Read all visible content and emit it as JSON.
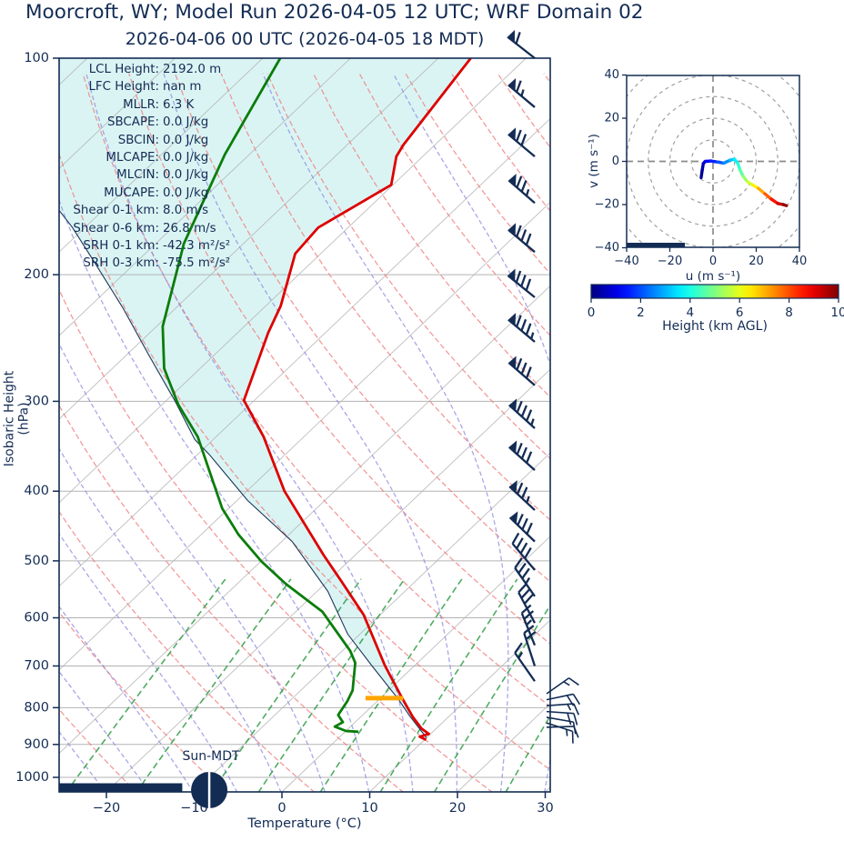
{
  "header": {
    "title": "Moorcroft, WY; Model Run 2026-04-05 12 UTC; WRF Domain 02",
    "subtitle": "2026-04-06 00 UTC  (2026-04-05 18 MDT)"
  },
  "skewt": {
    "ylabel": "Isobaric Height (hPa)",
    "xlabel": "Temperature (°C)",
    "pressure_ticks": [
      100,
      200,
      300,
      400,
      500,
      600,
      700,
      800,
      900,
      1000
    ],
    "temp_ticks": [
      -20,
      -10,
      0,
      10,
      20,
      30
    ],
    "sun_label": "Sun-MDT",
    "stats": [
      {
        "label": "LCL Height",
        "value": "2192.0 m"
      },
      {
        "label": "LFC Height",
        "value": "nan m"
      },
      {
        "label": "MLLR",
        "value": "6.3 K"
      },
      {
        "label": "SBCAPE",
        "value": "0.0 J/kg"
      },
      {
        "label": "SBCIN",
        "value": "0.0 J/kg"
      },
      {
        "label": "MLCAPE",
        "value": "0.0 J/kg"
      },
      {
        "label": "MLCIN",
        "value": "0.0 J/kg"
      },
      {
        "label": "MUCAPE",
        "value": "0.0 J/kg"
      },
      {
        "label": "Shear 0-1 km",
        "value": "8.0 m/s"
      },
      {
        "label": "Shear 0-6 km",
        "value": "26.8 m/s"
      },
      {
        "label": "SRH 0-1 km",
        "value": "-42.3 m²/s²"
      },
      {
        "label": "SRH 0-3 km",
        "value": "-75.5 m²/s²"
      }
    ]
  },
  "hodograph": {
    "xlabel": "u (m s⁻¹)",
    "ylabel": "v (m s⁻¹)",
    "ticks": [
      -40,
      -20,
      0,
      20,
      40
    ],
    "ring_radii": [
      10,
      20,
      30,
      40,
      50
    ],
    "axis_range": [
      -40,
      40
    ]
  },
  "colorbar": {
    "label": "Height (km AGL)",
    "ticks": [
      0,
      2,
      4,
      6,
      8,
      10
    ],
    "range": [
      0,
      10
    ]
  },
  "colors": {
    "navy": "#132c54",
    "temperature": "#dd0000",
    "dewpoint": "#0a7d0a",
    "parcel": "#1d3557",
    "dry_adiabat": "#f07d7d",
    "moist_adiabat": "#8b8bdf",
    "mixing_ratio": "#2f9e44",
    "isotherm": "#b3b3b3",
    "grid": "#b3b3b3",
    "hodo_ring": "#a0a0a0",
    "cape_shade": "#daf4f4",
    "lcl": "#ffa500"
  },
  "chart_data": [
    {
      "type": "line",
      "name": "skewt-log-p",
      "xlabel": "Temperature (°C)",
      "ylabel": "Isobaric Height (hPa)",
      "x_range": [
        -26,
        30
      ],
      "p_range": [
        100,
        1050
      ],
      "isotherm_step": 10,
      "dry_adiabat_theta": {
        "start": -30,
        "end": 200,
        "step": 10
      },
      "moist_adiabat_t0": {
        "start": -60,
        "end": 40,
        "step": 5
      },
      "mixing_ratios_gkg": [
        0.5,
        1,
        2,
        3,
        5,
        8,
        12,
        20,
        30
      ],
      "temperature_profile": [
        [
          100,
          -66.3
        ],
        [
          132,
          -63.6
        ],
        [
          137,
          -63.0
        ],
        [
          150,
          -60.2
        ],
        [
          172,
          -63.4
        ],
        [
          187,
          -62.9
        ],
        [
          221,
          -58.3
        ],
        [
          241,
          -56.5
        ],
        [
          299,
          -51.2
        ],
        [
          336,
          -44.6
        ],
        [
          400,
          -35.7
        ],
        [
          490,
          -23.7
        ],
        [
          534,
          -18.4
        ],
        [
          594,
          -11.9
        ],
        [
          699,
          -3.4
        ],
        [
          775,
          2.4
        ],
        [
          825,
          6.0
        ],
        [
          855,
          8.3
        ],
        [
          870,
          9.8
        ],
        [
          878,
          9.1
        ],
        [
          887,
          10.2
        ]
      ],
      "dewpoint_profile": [
        [
          100,
          -88.0
        ],
        [
          136,
          -82.8
        ],
        [
          181,
          -76.8
        ],
        [
          236,
          -69.3
        ],
        [
          270,
          -64.1
        ],
        [
          303,
          -58.2
        ],
        [
          336,
          -52.1
        ],
        [
          377,
          -46.4
        ],
        [
          423,
          -40.7
        ],
        [
          460,
          -35.7
        ],
        [
          501,
          -29.9
        ],
        [
          538,
          -24.5
        ],
        [
          575,
          -18.9
        ],
        [
          588,
          -17.0
        ],
        [
          667,
          -9.1
        ],
        [
          693,
          -7.1
        ],
        [
          757,
          -4.1
        ],
        [
          784,
          -3.4
        ],
        [
          819,
          -2.8
        ],
        [
          838,
          -1.4
        ],
        [
          850,
          -1.8
        ],
        [
          862,
          0.0
        ],
        [
          864,
          1.5
        ]
      ],
      "parcel_profile": [
        [
          881,
          10.0
        ],
        [
          822,
          5.5
        ],
        [
          779,
          2.2
        ],
        [
          700,
          -4.8
        ],
        [
          632,
          -11.4
        ],
        [
          551,
          -18.8
        ],
        [
          470,
          -28.8
        ],
        [
          412,
          -38.8
        ],
        [
          356,
          -48.6
        ],
        [
          339,
          -52.1
        ],
        [
          299,
          -59.1
        ],
        [
          258,
          -67.6
        ],
        [
          223,
          -75.9
        ],
        [
          193,
          -84.5
        ],
        [
          172,
          -91.4
        ],
        [
          163,
          -94.9
        ]
      ],
      "lcl_marker": {
        "pressure": 776,
        "temp_min": -1.7,
        "temp_max": 2.6
      },
      "surface_bar": {
        "temp_start": -27.0,
        "temp_end": -11.9
      },
      "sun_marker": {
        "temp": -8.5
      }
    },
    {
      "type": "barbs",
      "name": "wind-profile",
      "barbs": [
        {
          "p": 100,
          "rot": -142,
          "pen": 1,
          "full": 1,
          "half": 0,
          "x": 588
        },
        {
          "p": 117,
          "rot": -140,
          "pen": 1,
          "full": 1,
          "half": 1,
          "x": 588
        },
        {
          "p": 137,
          "rot": -140,
          "pen": 1,
          "full": 2,
          "half": 0,
          "x": 588
        },
        {
          "p": 159,
          "rot": -139,
          "pen": 1,
          "full": 2,
          "half": 1,
          "x": 588
        },
        {
          "p": 186,
          "rot": -140,
          "pen": 1,
          "full": 3,
          "half": 0,
          "x": 588
        },
        {
          "p": 215,
          "rot": -141,
          "pen": 1,
          "full": 3,
          "half": 0,
          "x": 588
        },
        {
          "p": 248,
          "rot": -140,
          "pen": 1,
          "full": 3,
          "half": 1,
          "x": 588
        },
        {
          "p": 285,
          "rot": -139,
          "pen": 1,
          "full": 3,
          "half": 0,
          "x": 588
        },
        {
          "p": 327,
          "rot": -138,
          "pen": 1,
          "full": 3,
          "half": 1,
          "x": 588
        },
        {
          "p": 374,
          "rot": -138,
          "pen": 1,
          "full": 3,
          "half": 0,
          "x": 588
        },
        {
          "p": 425,
          "rot": -137,
          "pen": 1,
          "full": 2,
          "half": 1,
          "x": 588
        },
        {
          "p": 470,
          "rot": -136,
          "pen": 1,
          "full": 3,
          "half": 0,
          "x": 588
        },
        {
          "p": 515,
          "rot": -130,
          "pen": 0,
          "full": 4,
          "half": 0,
          "x": 588
        },
        {
          "p": 560,
          "rot": -125,
          "pen": 0,
          "full": 3,
          "half": 1,
          "x": 588
        },
        {
          "p": 610,
          "rot": -118,
          "pen": 0,
          "full": 3,
          "half": 0,
          "x": 588
        },
        {
          "p": 655,
          "rot": -112,
          "pen": 0,
          "full": 2,
          "half": 1,
          "x": 588
        },
        {
          "p": 700,
          "rot": -108,
          "pen": 0,
          "full": 2,
          "half": 0,
          "x": 588
        },
        {
          "p": 735,
          "rot": -125,
          "pen": 0,
          "full": 1,
          "half": 1,
          "x": 588
        },
        {
          "p": 765,
          "rot": -35,
          "pen": 0,
          "full": 1,
          "half": 1,
          "x": 601
        },
        {
          "p": 780,
          "rot": -12,
          "pen": 0,
          "full": 2,
          "half": 0,
          "x": 601
        },
        {
          "p": 795,
          "rot": -4,
          "pen": 0,
          "full": 1,
          "half": 1,
          "x": 601
        },
        {
          "p": 810,
          "rot": 4,
          "pen": 0,
          "full": 2,
          "half": 0,
          "x": 601
        },
        {
          "p": 825,
          "rot": 10,
          "pen": 0,
          "full": 1,
          "half": 0,
          "x": 601
        },
        {
          "p": 840,
          "rot": 18,
          "pen": 0,
          "full": 1,
          "half": 1,
          "x": 601
        },
        {
          "p": 852,
          "rot": -2,
          "pen": 0,
          "full": 1,
          "half": 0,
          "x": 601
        }
      ]
    },
    {
      "type": "line",
      "name": "hodograph",
      "xlabel": "u (m s⁻¹)",
      "ylabel": "v (m s⁻¹)",
      "xlim": [
        -40,
        40
      ],
      "ylim": [
        -40,
        40
      ],
      "ground_bar": {
        "u_start": -40,
        "u_end": -13
      },
      "trace_u_v_heightkm": [
        [
          -5.5,
          -7.5,
          0
        ],
        [
          -5,
          -4,
          0.3
        ],
        [
          -4.5,
          -1,
          0.6
        ],
        [
          -3.5,
          0,
          0.9
        ],
        [
          -1,
          0.2,
          1.3
        ],
        [
          2,
          -0.3,
          1.8
        ],
        [
          5,
          -0.8,
          2.3
        ],
        [
          8,
          0.6,
          3.0
        ],
        [
          10,
          1,
          3.4
        ],
        [
          11.5,
          -1,
          3.9
        ],
        [
          12.5,
          -4,
          4.4
        ],
        [
          14,
          -7,
          4.9
        ],
        [
          16,
          -9.5,
          5.5
        ],
        [
          18.5,
          -11,
          6.1
        ],
        [
          21,
          -12.5,
          6.7
        ],
        [
          24,
          -15,
          7.5
        ],
        [
          27,
          -17.5,
          8.2
        ],
        [
          30,
          -19.5,
          9.0
        ],
        [
          32.5,
          -20,
          9.6
        ],
        [
          34,
          -20.5,
          10
        ]
      ]
    }
  ]
}
